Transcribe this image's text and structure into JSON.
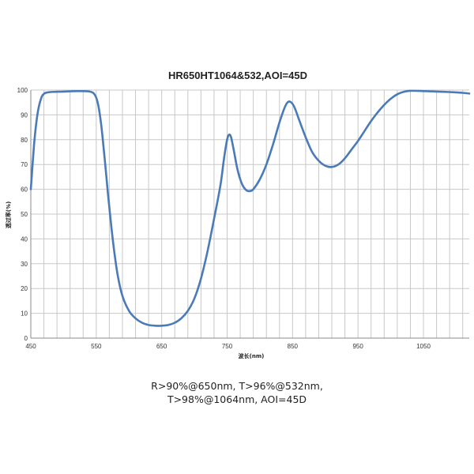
{
  "chart_data": {
    "type": "line",
    "title": "HR650HT1064&532,AOI=45D",
    "xlabel": "波长(nm)",
    "ylabel": "透过率(%)",
    "xlim": [
      450,
      1120
    ],
    "ylim": [
      0,
      100
    ],
    "x_ticks": [
      450,
      550,
      650,
      750,
      850,
      950,
      1050
    ],
    "y_ticks": [
      0,
      10,
      20,
      30,
      40,
      50,
      60,
      70,
      80,
      90,
      100
    ],
    "grid": true,
    "series": [
      {
        "color": "#4a7ab8",
        "points": [
          [
            450,
            60
          ],
          [
            455,
            78
          ],
          [
            460,
            90
          ],
          [
            465,
            96
          ],
          [
            470,
            98.5
          ],
          [
            480,
            99.2
          ],
          [
            500,
            99.4
          ],
          [
            520,
            99.6
          ],
          [
            540,
            99.4
          ],
          [
            548,
            98
          ],
          [
            553,
            94
          ],
          [
            558,
            85
          ],
          [
            563,
            72
          ],
          [
            568,
            58
          ],
          [
            573,
            45
          ],
          [
            578,
            34
          ],
          [
            583,
            25
          ],
          [
            590,
            17
          ],
          [
            600,
            11
          ],
          [
            610,
            8
          ],
          [
            620,
            6.2
          ],
          [
            630,
            5.3
          ],
          [
            640,
            5
          ],
          [
            650,
            5
          ],
          [
            660,
            5.3
          ],
          [
            670,
            6.2
          ],
          [
            680,
            8
          ],
          [
            690,
            11
          ],
          [
            700,
            16
          ],
          [
            710,
            24
          ],
          [
            720,
            35
          ],
          [
            730,
            48
          ],
          [
            740,
            62
          ],
          [
            745,
            72
          ],
          [
            750,
            80
          ],
          [
            753,
            82
          ],
          [
            756,
            81
          ],
          [
            760,
            76
          ],
          [
            765,
            69
          ],
          [
            770,
            64
          ],
          [
            775,
            61
          ],
          [
            780,
            59.5
          ],
          [
            785,
            59.3
          ],
          [
            790,
            60
          ],
          [
            800,
            64
          ],
          [
            810,
            70
          ],
          [
            820,
            78
          ],
          [
            830,
            87
          ],
          [
            838,
            93
          ],
          [
            843,
            95.2
          ],
          [
            848,
            95
          ],
          [
            853,
            93
          ],
          [
            860,
            88
          ],
          [
            870,
            81
          ],
          [
            880,
            75
          ],
          [
            890,
            71.5
          ],
          [
            900,
            69.5
          ],
          [
            910,
            69
          ],
          [
            920,
            70
          ],
          [
            930,
            72.5
          ],
          [
            940,
            76
          ],
          [
            950,
            79.5
          ],
          [
            960,
            83.5
          ],
          [
            970,
            87.5
          ],
          [
            980,
            91
          ],
          [
            990,
            94
          ],
          [
            1000,
            96.5
          ],
          [
            1010,
            98.3
          ],
          [
            1020,
            99.3
          ],
          [
            1030,
            99.7
          ],
          [
            1050,
            99.6
          ],
          [
            1070,
            99.4
          ],
          [
            1090,
            99.2
          ],
          [
            1110,
            98.9
          ],
          [
            1120,
            98.6
          ]
        ]
      }
    ]
  },
  "caption": {
    "line1": "R>90%@650nm, T>96%@532nm,",
    "line2": "T>98%@1064nm, AOI=45D"
  }
}
